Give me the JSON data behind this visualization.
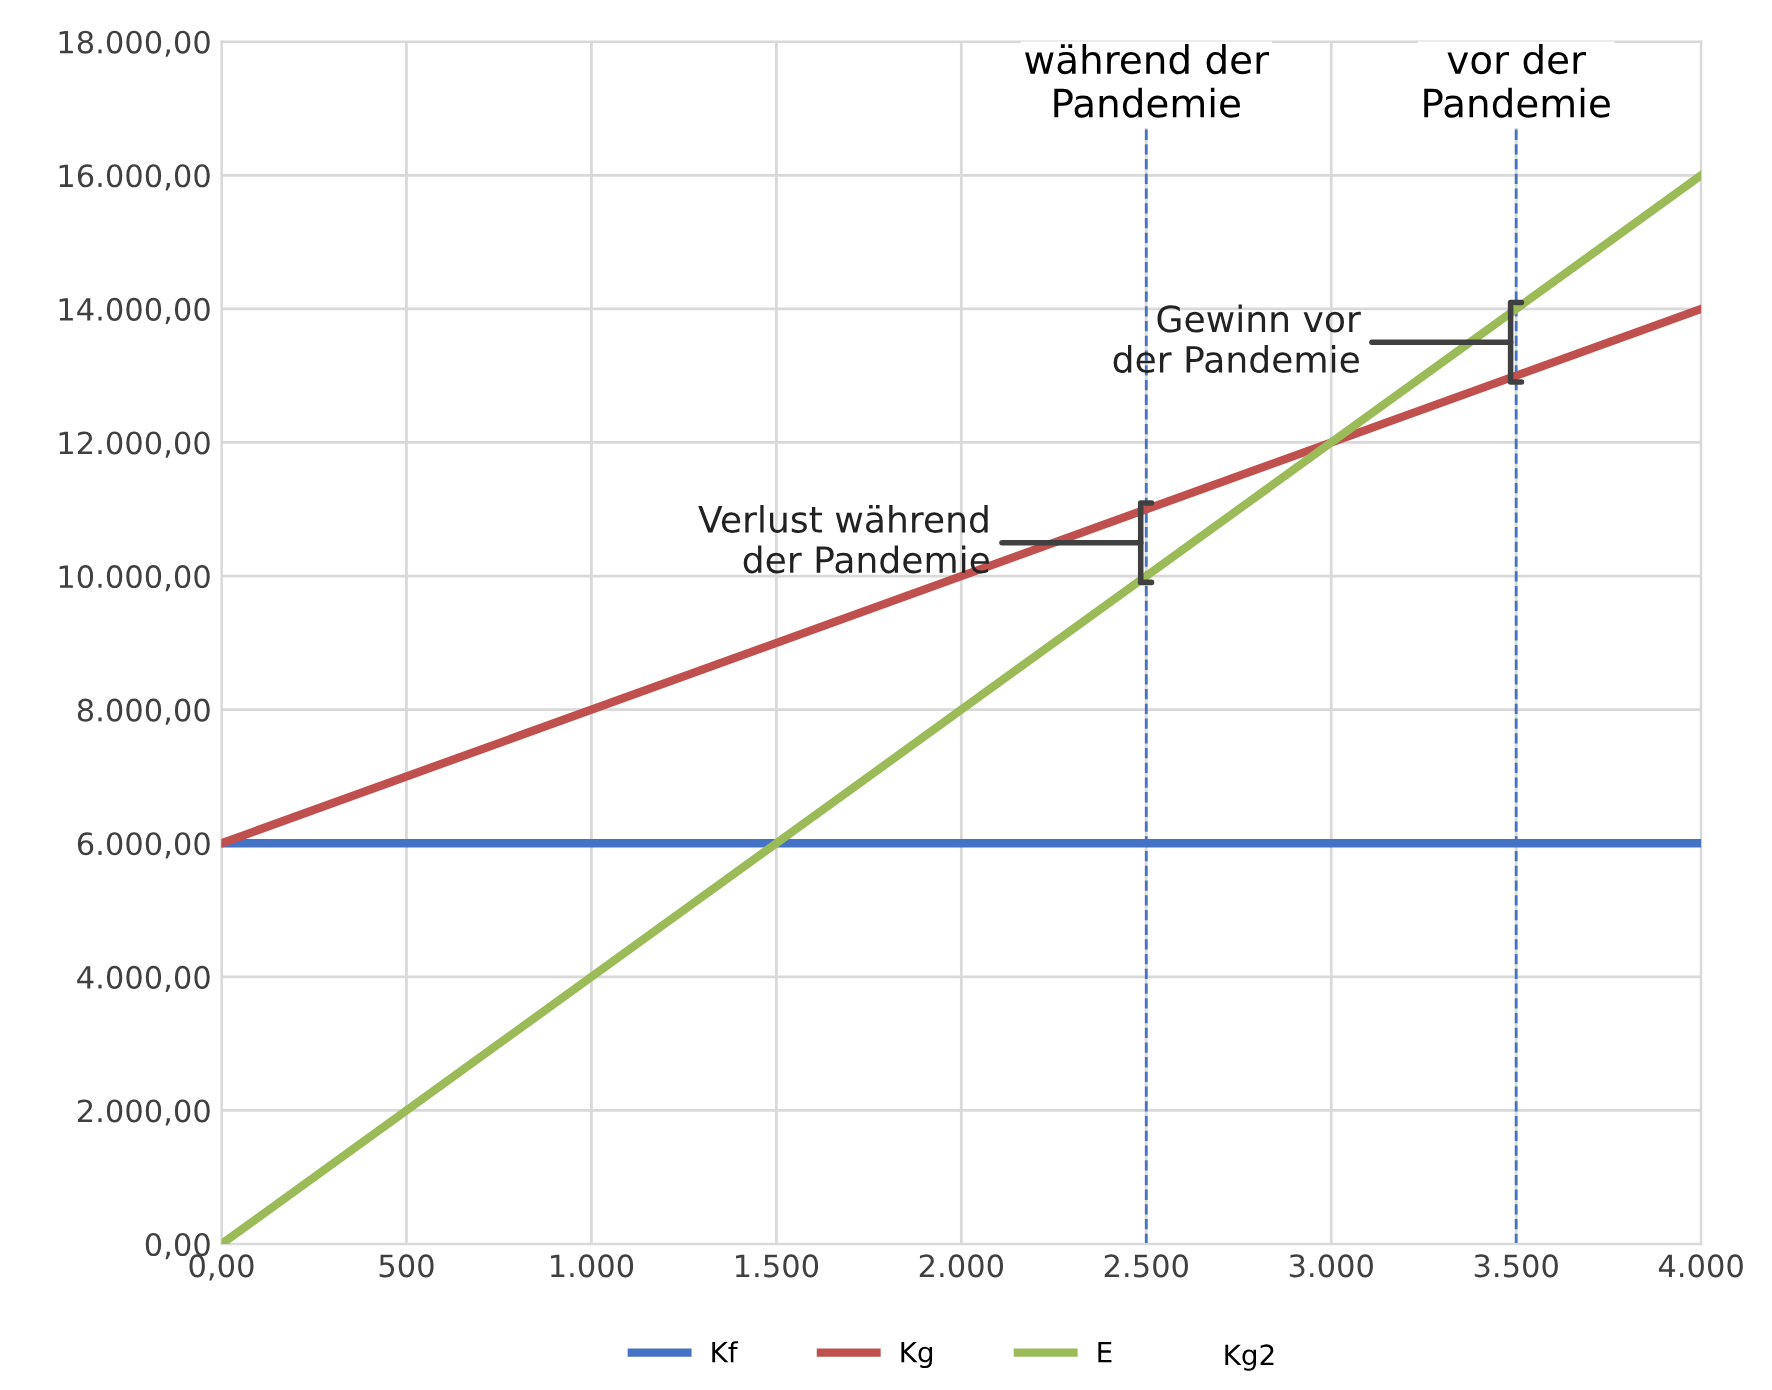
{
  "chart_data": {
    "type": "line",
    "x": [
      0,
      4000
    ],
    "series": [
      {
        "name": "Kf",
        "color": "#4472c4",
        "values": [
          6000,
          6000
        ]
      },
      {
        "name": "Kg",
        "color": "#c0504d",
        "values": [
          6000,
          14000
        ]
      },
      {
        "name": "E",
        "color": "#9bbb59",
        "values": [
          0,
          16000
        ]
      }
    ],
    "xlim": [
      0,
      4000
    ],
    "ylim": [
      0,
      18000
    ],
    "xticks": [
      {
        "value": 0,
        "label": "0,00"
      },
      {
        "value": 500,
        "label": "500"
      },
      {
        "value": 1000,
        "label": "1.000"
      },
      {
        "value": 1500,
        "label": "1.500"
      },
      {
        "value": 2000,
        "label": "2.000"
      },
      {
        "value": 2500,
        "label": "2.500"
      },
      {
        "value": 3000,
        "label": "3.000"
      },
      {
        "value": 3500,
        "label": "3.500"
      },
      {
        "value": 4000,
        "label": "4.000"
      }
    ],
    "yticks": [
      {
        "value": 0,
        "label": "0,00"
      },
      {
        "value": 2000,
        "label": "2.000,00"
      },
      {
        "value": 4000,
        "label": "4.000,00"
      },
      {
        "value": 6000,
        "label": "6.000,00"
      },
      {
        "value": 8000,
        "label": "8.000,00"
      },
      {
        "value": 10000,
        "label": "10.000,00"
      },
      {
        "value": 12000,
        "label": "12.000,00"
      },
      {
        "value": 14000,
        "label": "14.000,00"
      },
      {
        "value": 16000,
        "label": "16.000,00"
      },
      {
        "value": 18000,
        "label": "18.000,00"
      }
    ],
    "ref_lines": [
      {
        "axis": "x",
        "value": 2500,
        "label": "während der\nPandemie",
        "color": "#4472c4",
        "line_style": "dashed"
      },
      {
        "axis": "x",
        "value": 3500,
        "label": "vor der\nPandemie",
        "color": "#4472c4",
        "line_style": "dashed"
      }
    ],
    "annotations": [
      {
        "text": "Verlust während\nder Pandemie",
        "x": 2500,
        "y": 10500
      },
      {
        "text": "Gewinn vor\nder Pandemie",
        "x": 3500,
        "y": 13500
      },
      "Kg2"
    ],
    "grid": true,
    "legend": "bottom",
    "marker": "none",
    "line_style": "solid"
  }
}
